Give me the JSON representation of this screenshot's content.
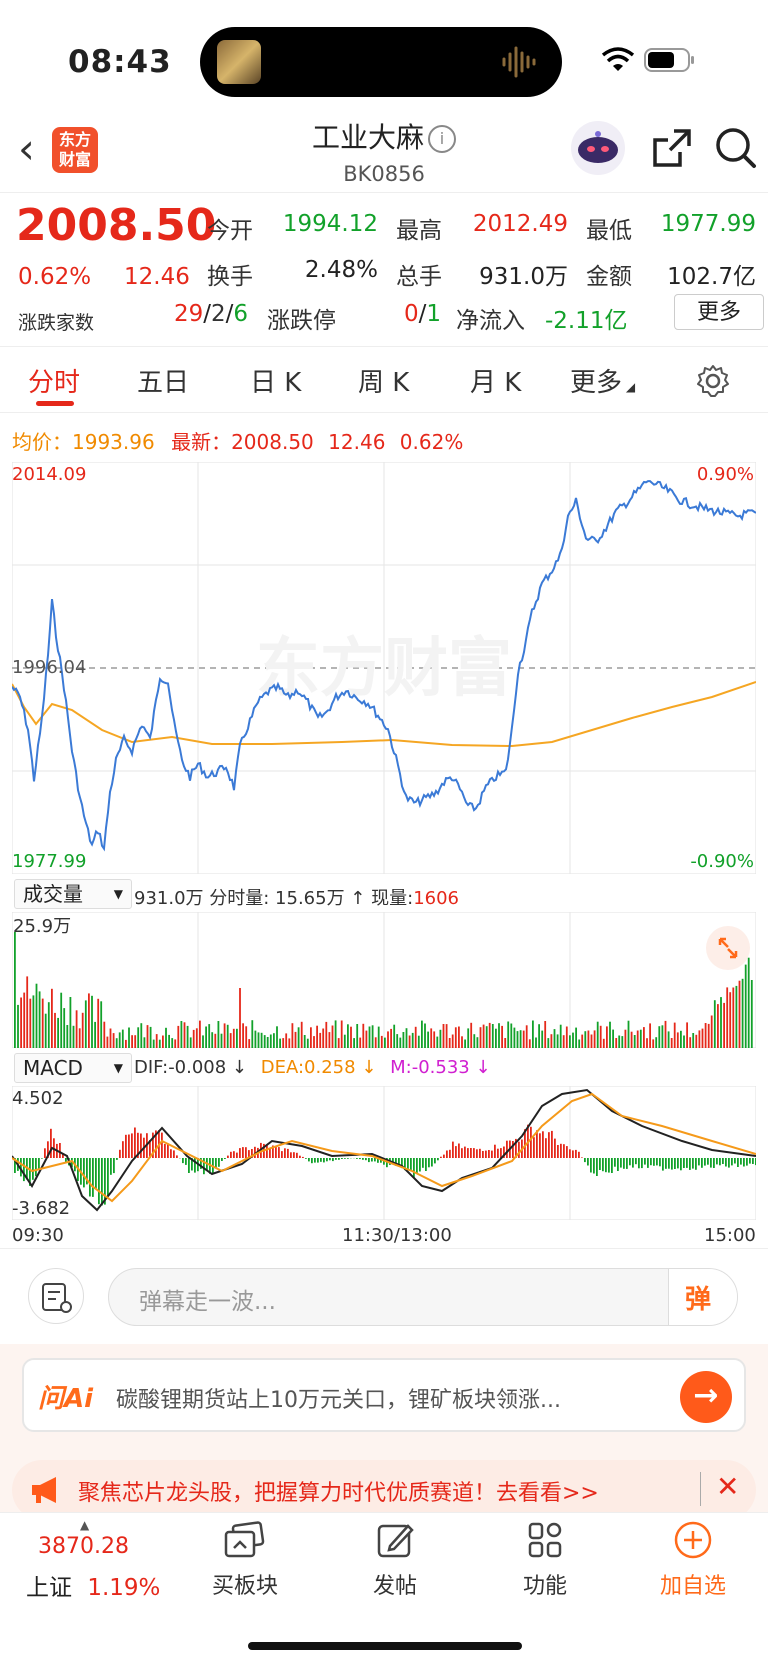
{
  "status": {
    "time": "08:43"
  },
  "header": {
    "title": "工业大麻",
    "info_icon": "info-icon",
    "code": "BK0856",
    "logo_line1": "东方",
    "logo_line2": "财富"
  },
  "quote": {
    "price": "2008.50",
    "change_pct": "0.62%",
    "change_abs": "12.46",
    "open_label": "今开",
    "open": "1994.12",
    "high_label": "最高",
    "high": "2012.49",
    "low_label": "最低",
    "low": "1977.99",
    "turnover_label": "换手",
    "turnover": "2.48%",
    "volume_label": "总手",
    "volume": "931.0万",
    "amount_label": "金额",
    "amount": "102.7亿",
    "breadth_label": "涨跌家数",
    "breadth_up": "29",
    "breadth_flat": "2",
    "breadth_down": "6",
    "sep": "/",
    "limit_label": "涨跌停",
    "limit_up": "0",
    "limit_down": "1",
    "netflow_label": "净流入",
    "netflow": "-2.11亿",
    "more_button": "更多"
  },
  "tabs": [
    "分时",
    "五日",
    "日 K",
    "周 K",
    "月 K",
    "更多"
  ],
  "legend": {
    "avg_label": "均价：",
    "avg": "1993.96",
    "latest_label": "最新：",
    "latest": "2008.50",
    "latest_chg": "12.46",
    "latest_pct": "0.62%"
  },
  "chart_labels": {
    "top": "2014.09",
    "mid": "1996.04",
    "bottom": "1977.99",
    "top_pct": "0.90%",
    "bottom_pct": "-0.90%",
    "watermark": "东方财富"
  },
  "volume_panel": {
    "selector": "成交量",
    "total": "931.0万",
    "minute_label": "分时量: 15.65万 ↑",
    "current_label": "现量:",
    "current": "1606",
    "max": "25.9万"
  },
  "macd_panel": {
    "selector": "MACD",
    "dif": "DIF:-0.008 ↓",
    "dea": "DEA:0.258 ↓",
    "m": "M:-0.533 ↓",
    "max": "4.502",
    "min": "-3.682"
  },
  "time_axis": {
    "start": "09:30",
    "mid": "11:30/13:00",
    "end": "15:00"
  },
  "danmu": {
    "placeholder": "弹幕走一波...",
    "send_label": "弹"
  },
  "ask": {
    "brand": "问Ai",
    "text": "碳酸锂期货站上10万元关口，锂矿板块领涨..."
  },
  "promo": {
    "text": "聚焦芯片龙头股，把握算力时代优质赛道！去看看>>"
  },
  "bottom_nav": {
    "index_value": "3870.28",
    "index_name": "上证",
    "index_pct": "1.19%",
    "items": [
      "买板块",
      "发帖",
      "功能",
      "加自选"
    ]
  },
  "colors": {
    "up": "#e5281a",
    "down": "#12a12a",
    "price_line": "#3b7ad6",
    "avg_line": "#f5a623",
    "macd_pink": "#d020d0",
    "accent": "#ff6a1a"
  }
}
